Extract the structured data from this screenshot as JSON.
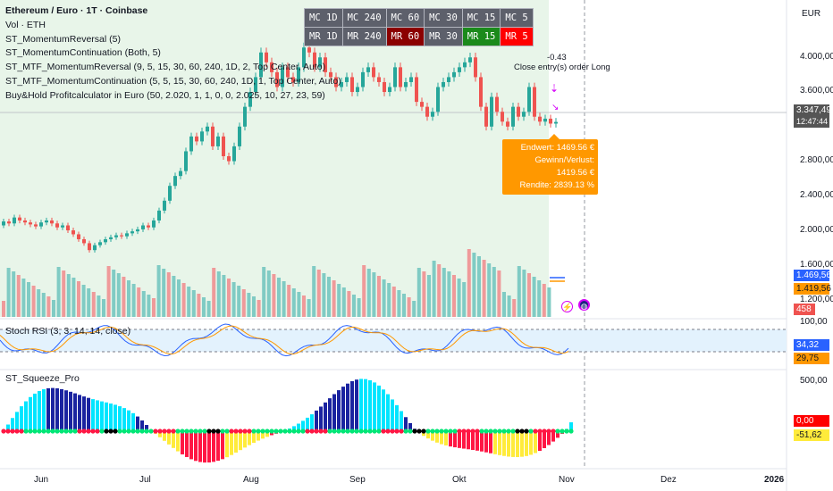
{
  "symbol_title": "Ethereum / Euro · 1T · Coinbase",
  "indicators": [
    "Vol · ETH",
    "ST_MomentumReversal (5)",
    "ST_MomentumContinuation (Both, 5)",
    "ST_MTF_MomentumReversal (9, 5, 15, 30, 60, 240, 1D, 2, Top Center, Auto)",
    "ST_MTF_MomentumContinuation (5, 5, 15, 30, 60, 240, 1D, 1, Top Center, Auto)",
    "Buy&Hold Profitcalculator in Euro (50, 2.020, 1, 1, 0, 0, 2.025, 10, 27, 23, 59)"
  ],
  "mtf_table": [
    [
      {
        "t": "MC 1D",
        "c": "#5d606b"
      },
      {
        "t": "MC 240",
        "c": "#5d606b"
      },
      {
        "t": "MC 60",
        "c": "#5d606b"
      },
      {
        "t": "MC 30",
        "c": "#5d606b"
      },
      {
        "t": "MC 15",
        "c": "#5d606b"
      },
      {
        "t": "MC 5",
        "c": "#5d606b"
      }
    ],
    [
      {
        "t": "MR 1D",
        "c": "#5d606b"
      },
      {
        "t": "MR 240",
        "c": "#5d606b"
      },
      {
        "t": "MR 60",
        "c": "#8b0000"
      },
      {
        "t": "MR 30",
        "c": "#5d606b"
      },
      {
        "t": "MR 15",
        "c": "#1b8a1b"
      },
      {
        "t": "MR 5",
        "c": "#ff0000"
      }
    ]
  ],
  "currency": "EUR",
  "price_scale": [
    "4.000,00",
    "3.600,00",
    "2.800,00",
    "2.400,00",
    "2.000,00",
    "1.600,00",
    "1.200,00"
  ],
  "last_price": "3.347,49",
  "countdown": "12:47:44",
  "badges": {
    "endwert": "1.469,56",
    "gewinn": "1.419,56",
    "volume": "458",
    "rsi_k": "34,32",
    "rsi_d": "29,75",
    "sq_zero": "0,00",
    "sq_val": "-51,62"
  },
  "pnl_box": {
    "line1": "Endwert: 1469.56 €",
    "line2": "Gewinn/Verlust: 1419.56 €",
    "line3": "Rendite: 2839.13 %"
  },
  "trade_note": {
    "value": "-0.43",
    "label": "Close entry(s) order Long"
  },
  "rsi": {
    "title": "Stoch RSI (3, 3, 14, 14, close)",
    "top": "100,00"
  },
  "squeeze": {
    "title": "ST_Squeeze_Pro",
    "top": "500,00"
  },
  "x_axis": [
    "Jun",
    "Jul",
    "Aug",
    "Sep",
    "Okt",
    "Nov",
    "Dez",
    "2026"
  ],
  "colors": {
    "up": "#26a69a",
    "down": "#ef5350",
    "bg_zone": "#e8f5e9",
    "orange": "#ff9800",
    "blue": "#2962ff"
  },
  "chart_data": {
    "type": "candlestick",
    "series": [
      {
        "name": "ETH/EUR",
        "values": [
          [
            2300,
            2340
          ],
          [
            2340,
            2320
          ],
          [
            2320,
            2380
          ],
          [
            2380,
            2350
          ],
          [
            2350,
            2330
          ],
          [
            2330,
            2310
          ],
          [
            2310,
            2290
          ],
          [
            2290,
            2330
          ],
          [
            2330,
            2350
          ],
          [
            2350,
            2320
          ],
          [
            2320,
            2280
          ],
          [
            2280,
            2300
          ],
          [
            2300,
            2250
          ],
          [
            2250,
            2210
          ],
          [
            2210,
            2160
          ],
          [
            2160,
            2120
          ],
          [
            2120,
            2050
          ],
          [
            2050,
            2100
          ],
          [
            2100,
            2130
          ],
          [
            2130,
            2160
          ],
          [
            2160,
            2180
          ],
          [
            2180,
            2200
          ],
          [
            2200,
            2190
          ],
          [
            2190,
            2220
          ],
          [
            2220,
            2240
          ],
          [
            2240,
            2260
          ],
          [
            2260,
            2300
          ],
          [
            2300,
            2280
          ],
          [
            2280,
            2350
          ],
          [
            2350,
            2450
          ],
          [
            2450,
            2550
          ],
          [
            2550,
            2700
          ],
          [
            2700,
            2800
          ],
          [
            2800,
            2850
          ],
          [
            2850,
            3050
          ],
          [
            3050,
            3200
          ],
          [
            3200,
            3150
          ],
          [
            3150,
            3250
          ],
          [
            3250,
            3300
          ],
          [
            3300,
            3100
          ],
          [
            3100,
            3200
          ],
          [
            3200,
            3000
          ],
          [
            3000,
            2950
          ],
          [
            2950,
            3100
          ],
          [
            3100,
            3300
          ],
          [
            3300,
            3500
          ],
          [
            3500,
            3650
          ],
          [
            3650,
            3800
          ],
          [
            3800,
            4050
          ],
          [
            4050,
            3950
          ],
          [
            3950,
            3850
          ],
          [
            3850,
            3700
          ],
          [
            3700,
            3900
          ],
          [
            3900,
            3800
          ],
          [
            3800,
            3750
          ],
          [
            3750,
            3900
          ],
          [
            3900,
            4100
          ],
          [
            4100,
            4050
          ],
          [
            4050,
            3900
          ],
          [
            3900,
            4000
          ],
          [
            4000,
            3850
          ],
          [
            3850,
            3800
          ],
          [
            3800,
            3700
          ],
          [
            3700,
            3750
          ],
          [
            3750,
            3800
          ],
          [
            3800,
            3650
          ],
          [
            3650,
            3700
          ],
          [
            3700,
            3850
          ],
          [
            3850,
            3900
          ],
          [
            3900,
            3800
          ],
          [
            3800,
            3750
          ],
          [
            3750,
            3650
          ],
          [
            3650,
            3700
          ],
          [
            3700,
            3900
          ],
          [
            3900,
            3700
          ],
          [
            3700,
            3750
          ],
          [
            3750,
            3800
          ],
          [
            3800,
            3550
          ],
          [
            3550,
            3500
          ],
          [
            3500,
            3400
          ],
          [
            3400,
            3450
          ],
          [
            3450,
            3700
          ],
          [
            3700,
            3750
          ],
          [
            3750,
            3800
          ],
          [
            3800,
            3850
          ],
          [
            3850,
            3900
          ],
          [
            3900,
            3950
          ],
          [
            3950,
            4000
          ],
          [
            4000,
            3800
          ],
          [
            3800,
            3500
          ],
          [
            3500,
            3300
          ],
          [
            3300,
            3600
          ],
          [
            3600,
            3450
          ],
          [
            3450,
            3350
          ],
          [
            3350,
            3300
          ],
          [
            3300,
            3500
          ],
          [
            3500,
            3400
          ],
          [
            3400,
            3450
          ],
          [
            3450,
            3700
          ],
          [
            3700,
            3400
          ],
          [
            3400,
            3350
          ],
          [
            3350,
            3380
          ],
          [
            3380,
            3330
          ],
          [
            3330,
            3347
          ]
        ]
      }
    ],
    "price_range": [
      1600,
      4400
    ]
  }
}
